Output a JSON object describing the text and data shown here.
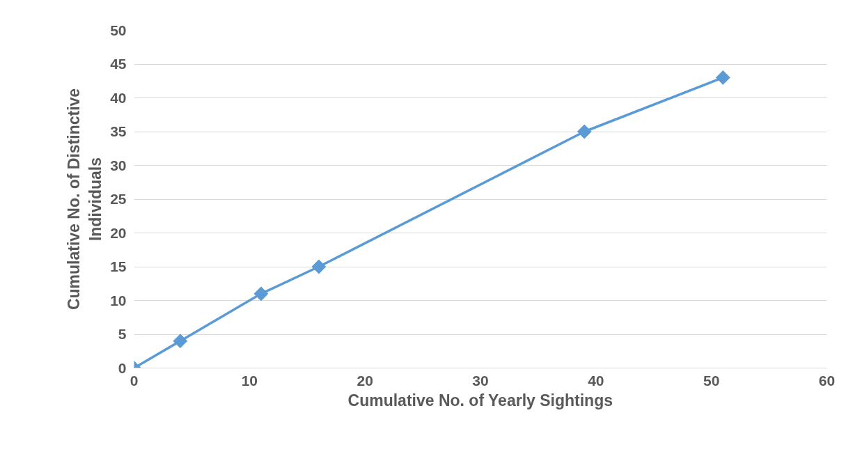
{
  "chart_data": {
    "type": "line",
    "xlabel": "Cumulative No. of Yearly Sightings",
    "ylabel": "Cumulative No. of Distinctive Individuals",
    "x": [
      0,
      4,
      11,
      16,
      39,
      51
    ],
    "series": [
      {
        "color": "#5b9bd5",
        "values": [
          0,
          4,
          11,
          15,
          35,
          43
        ]
      }
    ],
    "xlim": [
      0,
      60
    ],
    "xticks": [
      0,
      10,
      20,
      30,
      40,
      50,
      60
    ],
    "ylim": [
      0,
      50
    ],
    "yticks": [
      0,
      5,
      10,
      15,
      20,
      25,
      30,
      35,
      40,
      45,
      50
    ],
    "grid": "y",
    "marker": "diamond",
    "line_style": "solid"
  }
}
